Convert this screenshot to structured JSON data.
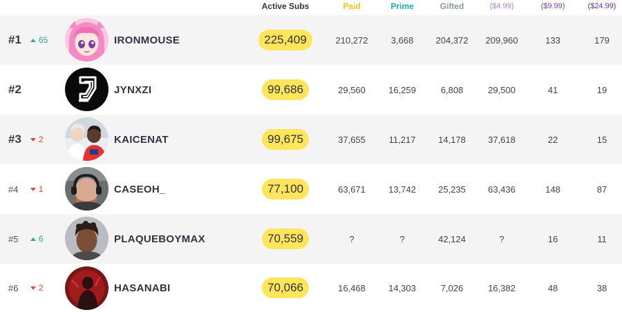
{
  "columns": {
    "active_subs": "Active Subs",
    "paid": "Paid",
    "prime": "Prime",
    "gifted": "Gifted",
    "tier1": "($4.99)",
    "tier2": "($9.99)",
    "tier3": "($24.99)"
  },
  "colors": {
    "paid": "#f0c419",
    "prime": "#1aa7c5",
    "gifted": "#8a96a3",
    "tier1": "#b07fd6",
    "tier2": "#7d3fb0",
    "tier3": "#6a2aa0",
    "active_pill": "#ffe55c",
    "rank_up": "#2aa98f",
    "rank_down": "#e0483b"
  },
  "rows": [
    {
      "rank": "#1",
      "change": "65",
      "direction": "up",
      "avatar": "pink-haired-anime-avatar-icon",
      "name": "IRONMOUSE",
      "active_subs": "225,409",
      "paid": "210,272",
      "prime": "3,668",
      "gifted": "204,372",
      "tier1": "209,960",
      "tier2": "133",
      "tier3": "179"
    },
    {
      "rank": "#2",
      "change": "",
      "direction": "none",
      "avatar": "jd-logo-avatar-icon",
      "name": "JYNXZI",
      "active_subs": "99,686",
      "paid": "29,560",
      "prime": "16,259",
      "gifted": "6,808",
      "tier1": "29,500",
      "tier2": "41",
      "tier3": "19"
    },
    {
      "rank": "#3",
      "change": "2",
      "direction": "down",
      "avatar": "two-people-photo-avatar-icon",
      "name": "KAICENAT",
      "active_subs": "99,675",
      "paid": "37,655",
      "prime": "11,217",
      "gifted": "14,178",
      "tier1": "37,618",
      "tier2": "22",
      "tier3": "15"
    },
    {
      "rank": "#4",
      "change": "1",
      "direction": "down",
      "avatar": "headset-man-avatar-icon",
      "name": "CASEOH_",
      "active_subs": "77,100",
      "paid": "63,671",
      "prime": "13,742",
      "gifted": "25,235",
      "tier1": "63,436",
      "tier2": "148",
      "tier3": "87"
    },
    {
      "rank": "#5",
      "change": "6",
      "direction": "up",
      "avatar": "man-portrait-avatar-icon",
      "name": "PLAQUEBOYMAX",
      "active_subs": "70,559",
      "paid": "?",
      "prime": "?",
      "gifted": "42,124",
      "tier1": "?",
      "tier2": "16",
      "tier3": "11"
    },
    {
      "rank": "#6",
      "change": "2",
      "direction": "down",
      "avatar": "red-silhouette-avatar-icon",
      "name": "HASANABI",
      "active_subs": "70,066",
      "paid": "16,468",
      "prime": "14,303",
      "gifted": "7,026",
      "tier1": "16,382",
      "tier2": "48",
      "tier3": "38"
    }
  ]
}
